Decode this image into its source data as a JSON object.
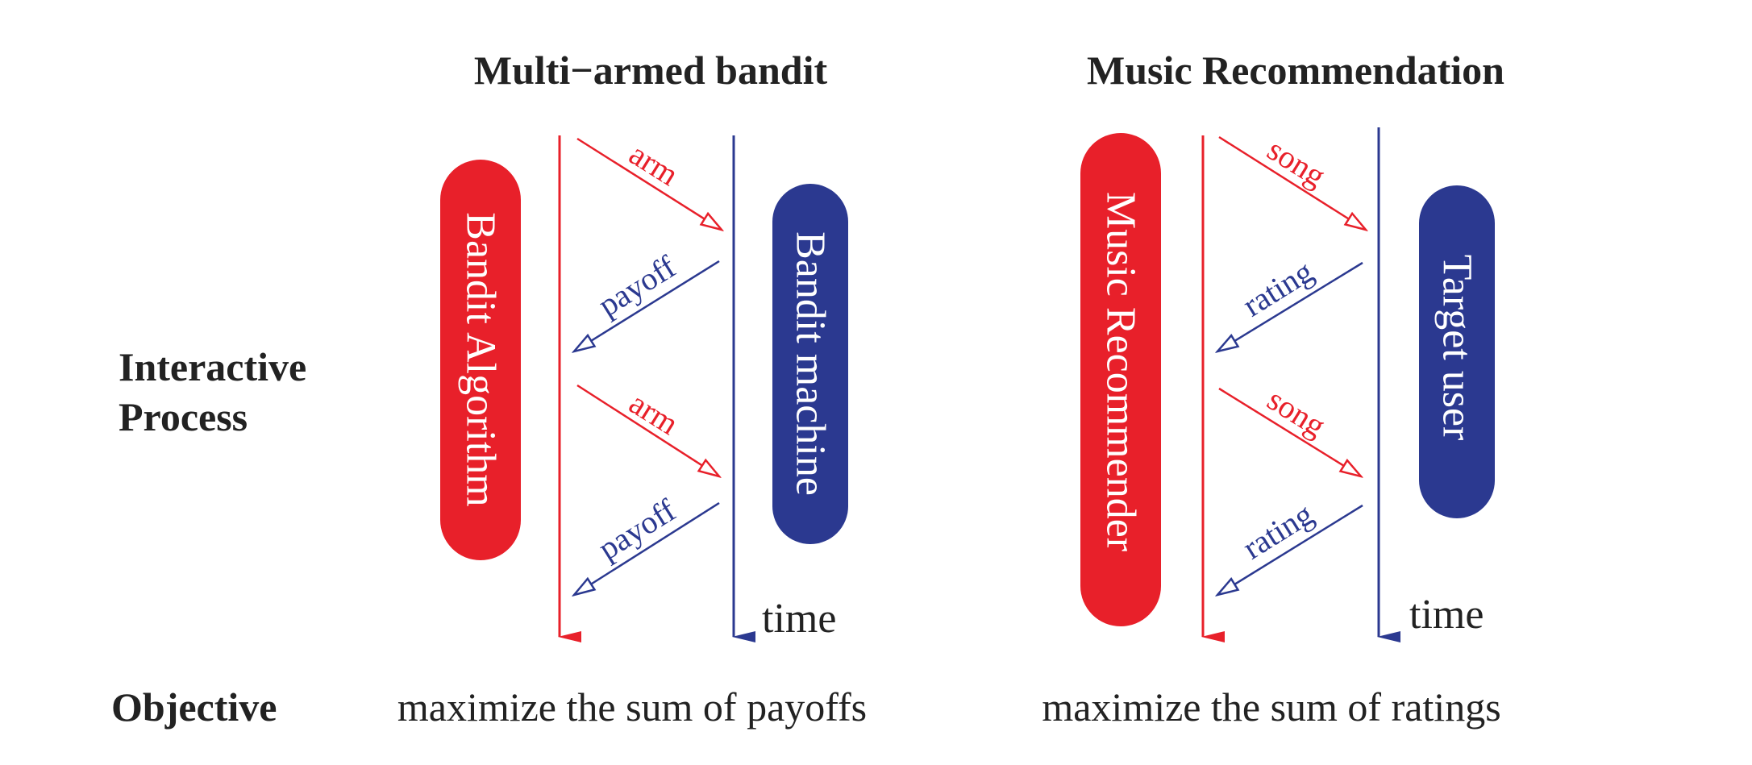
{
  "colors": {
    "red": "#e8202a",
    "blue": "#2b3990",
    "text": "#222222"
  },
  "headings": {
    "left": "Multi−armed bandit",
    "right": "Music Recommendation"
  },
  "row_labels": {
    "interactive_line1": "Interactive",
    "interactive_line2": "Process",
    "objective": "Objective"
  },
  "left_panel": {
    "agent": "Bandit Algorithm",
    "environment": "Bandit machine",
    "action_label": "arm",
    "feedback_label": "payoff",
    "time_label": "time",
    "objective": "maximize the sum of payoffs"
  },
  "right_panel": {
    "agent": "Music Recommender",
    "environment": "Target user",
    "action_label": "song",
    "feedback_label": "rating",
    "time_label": "time",
    "objective": "maximize the sum of ratings"
  }
}
